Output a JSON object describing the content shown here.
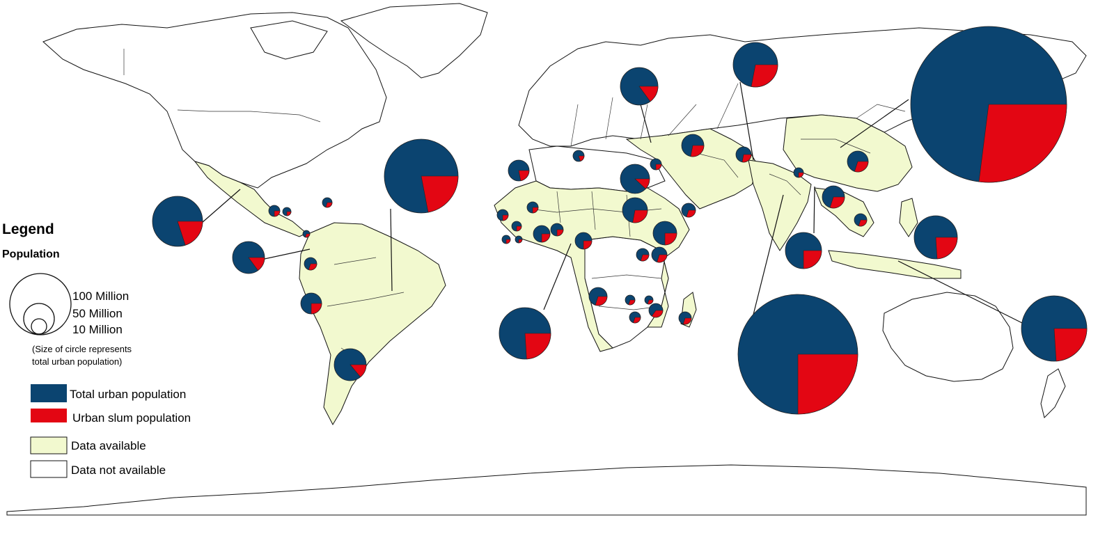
{
  "legend": {
    "title": "Legend",
    "subtitle": "Population",
    "size_labels": [
      "100 Million",
      "50 Million",
      "10 Million"
    ],
    "size_note_line1": "(Size of circle represents",
    "size_note_line2": "total urban population)",
    "entries": [
      {
        "label": "Total urban population",
        "color": "#0b4470"
      },
      {
        "label": "Urban slum population",
        "color": "#e30613"
      },
      {
        "label": "Data available",
        "color": "#f2f9cf"
      },
      {
        "label": "Data not available",
        "color": "#ffffff"
      }
    ]
  },
  "colors": {
    "urban": "#0b4470",
    "slum": "#e30613",
    "available": "#f2f9cf",
    "not_available": "#ffffff",
    "outline": "#111111"
  }
}
